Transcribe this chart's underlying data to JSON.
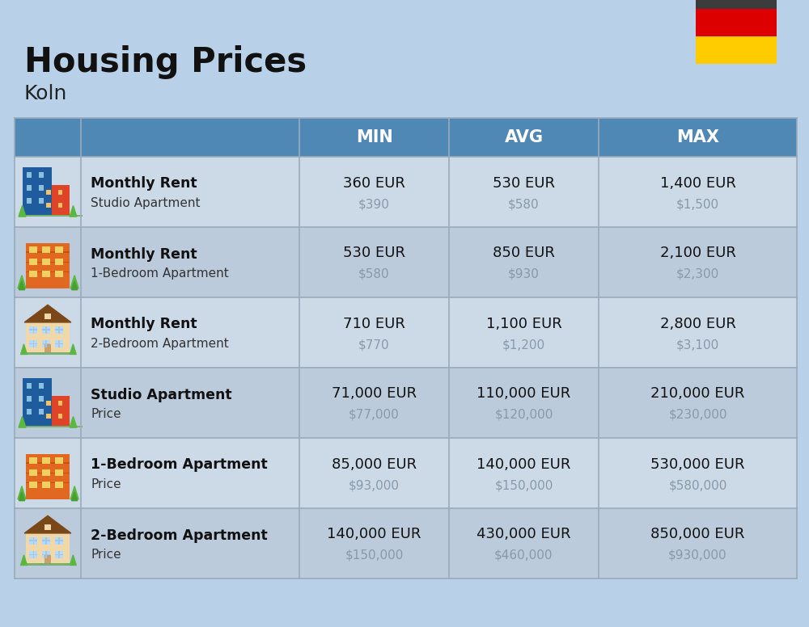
{
  "title": "Housing Prices",
  "subtitle": "Koln",
  "background_color": "#b8d0e8",
  "header_bg_color": "#4f87b5",
  "header_text_color": "#ffffff",
  "row_bg_colors": [
    "#ccdae8",
    "#bccbdb"
  ],
  "col_header_labels": [
    "MIN",
    "AVG",
    "MAX"
  ],
  "rows": [
    {
      "bold_label": "Monthly Rent",
      "sub_label": "Studio Apartment",
      "min_eur": "360 EUR",
      "min_usd": "$390",
      "avg_eur": "530 EUR",
      "avg_usd": "$580",
      "max_eur": "1,400 EUR",
      "max_usd": "$1,500",
      "icon_type": "blue_red"
    },
    {
      "bold_label": "Monthly Rent",
      "sub_label": "1-Bedroom Apartment",
      "min_eur": "530 EUR",
      "min_usd": "$580",
      "avg_eur": "850 EUR",
      "avg_usd": "$930",
      "max_eur": "2,100 EUR",
      "max_usd": "$2,300",
      "icon_type": "orange"
    },
    {
      "bold_label": "Monthly Rent",
      "sub_label": "2-Bedroom Apartment",
      "min_eur": "710 EUR",
      "min_usd": "$770",
      "avg_eur": "1,100 EUR",
      "avg_usd": "$1,200",
      "max_eur": "2,800 EUR",
      "max_usd": "$3,100",
      "icon_type": "beige"
    },
    {
      "bold_label": "Studio Apartment",
      "sub_label": "Price",
      "min_eur": "71,000 EUR",
      "min_usd": "$77,000",
      "avg_eur": "110,000 EUR",
      "avg_usd": "$120,000",
      "max_eur": "210,000 EUR",
      "max_usd": "$230,000",
      "icon_type": "blue_red"
    },
    {
      "bold_label": "1-Bedroom Apartment",
      "sub_label": "Price",
      "min_eur": "85,000 EUR",
      "min_usd": "$93,000",
      "avg_eur": "140,000 EUR",
      "avg_usd": "$150,000",
      "max_eur": "530,000 EUR",
      "max_usd": "$580,000",
      "icon_type": "orange"
    },
    {
      "bold_label": "2-Bedroom Apartment",
      "sub_label": "Price",
      "min_eur": "140,000 EUR",
      "min_usd": "$150,000",
      "avg_eur": "430,000 EUR",
      "avg_usd": "$460,000",
      "max_eur": "850,000 EUR",
      "max_usd": "$930,000",
      "icon_type": "beige"
    }
  ],
  "flag_colors": [
    "#3c3c3c",
    "#dd0000",
    "#ffcc00"
  ],
  "usd_color": "#8899aa",
  "divider_color": "#9aaabb"
}
